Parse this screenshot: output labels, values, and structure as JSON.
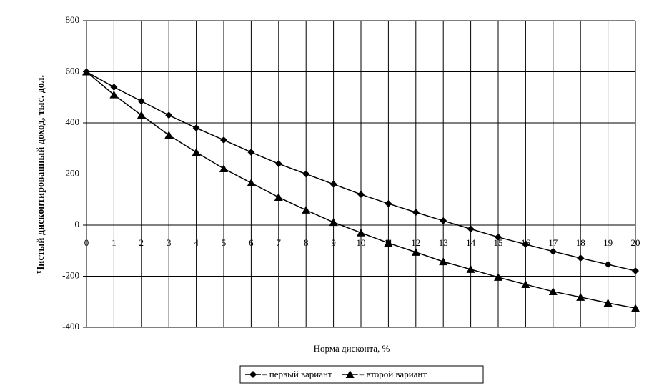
{
  "chart_data": {
    "type": "line",
    "xlabel": "Норма дисконта, %",
    "ylabel": "Чистый дисконтированный доход, тыс. дол.",
    "x": [
      0,
      1,
      2,
      3,
      4,
      5,
      6,
      7,
      8,
      9,
      10,
      11,
      12,
      13,
      14,
      15,
      16,
      17,
      18,
      19,
      20
    ],
    "xlim": [
      0,
      20
    ],
    "xticks": [
      0,
      1,
      2,
      3,
      4,
      5,
      6,
      7,
      8,
      9,
      10,
      11,
      12,
      13,
      14,
      15,
      16,
      17,
      18,
      19,
      20
    ],
    "ylim": [
      -400,
      800
    ],
    "yticks": [
      -400,
      -200,
      0,
      200,
      400,
      600,
      800
    ],
    "grid": true,
    "legend": "bottom",
    "series": [
      {
        "name": "– первый вариант",
        "color": "#000000",
        "marker": "diamond",
        "values": [
          600,
          540,
          485,
          430,
          380,
          333,
          285,
          240,
          200,
          160,
          120,
          84,
          50,
          17,
          -15,
          -47,
          -75,
          -103,
          -129,
          -154,
          -179
        ]
      },
      {
        "name": "– второй вариант",
        "color": "#000000",
        "marker": "triangle",
        "values": [
          600,
          510,
          430,
          352,
          285,
          221,
          165,
          109,
          59,
          11,
          -30,
          -70,
          -106,
          -143,
          -173,
          -204,
          -232,
          -260,
          -282,
          -305,
          -325
        ]
      }
    ]
  }
}
